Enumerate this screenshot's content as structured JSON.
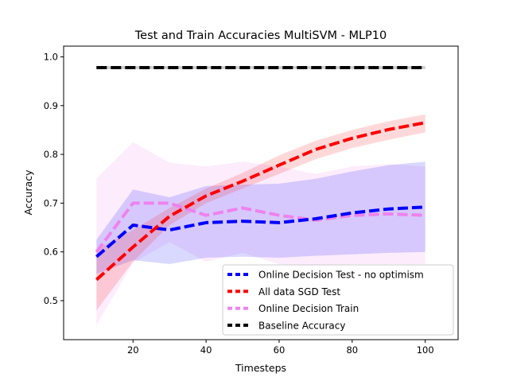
{
  "chart_data": {
    "type": "line",
    "title": "Test and Train Accuracies MultiSVM - MLP10",
    "xlabel": "Timesteps",
    "ylabel": "Accuracy",
    "xlim": [
      1,
      109
    ],
    "ylim": [
      0.42,
      1.022
    ],
    "xticks": [
      20,
      40,
      60,
      80,
      100
    ],
    "yticks": [
      0.5,
      0.6,
      0.7,
      0.8,
      0.9,
      1.0
    ],
    "ytick_labels": [
      "0.5",
      "0.6",
      "0.7",
      "0.8",
      "0.9",
      "1.0"
    ],
    "grid": false,
    "legend_position": "lower-right",
    "x": [
      10,
      20,
      30,
      40,
      50,
      60,
      70,
      80,
      90,
      100
    ],
    "series": [
      {
        "name": "Online Decision Test - no optimism",
        "color": "#0000ff",
        "values": [
          0.59,
          0.655,
          0.645,
          0.66,
          0.663,
          0.66,
          0.668,
          0.68,
          0.688,
          0.692
        ],
        "lower": [
          0.555,
          0.583,
          0.575,
          0.588,
          0.59,
          0.588,
          0.592,
          0.595,
          0.598,
          0.6
        ],
        "upper": [
          0.625,
          0.728,
          0.712,
          0.735,
          0.738,
          0.74,
          0.75,
          0.765,
          0.778,
          0.785
        ]
      },
      {
        "name": "All data SGD Test",
        "color": "#ff0000",
        "values": [
          0.543,
          0.61,
          0.673,
          0.715,
          0.745,
          0.778,
          0.81,
          0.833,
          0.851,
          0.865
        ],
        "lower": [
          0.48,
          0.58,
          0.655,
          0.7,
          0.73,
          0.76,
          0.79,
          0.813,
          0.83,
          0.845
        ],
        "upper": [
          0.605,
          0.645,
          0.69,
          0.73,
          0.762,
          0.798,
          0.828,
          0.85,
          0.868,
          0.882
        ]
      },
      {
        "name": "Online Decision Train",
        "color": "#ee82ee",
        "values": [
          0.6,
          0.7,
          0.7,
          0.675,
          0.69,
          0.675,
          0.665,
          0.675,
          0.678,
          0.675
        ],
        "lower": [
          0.45,
          0.578,
          0.62,
          0.58,
          0.598,
          0.575,
          0.57,
          0.575,
          0.575,
          0.575
        ],
        "upper": [
          0.75,
          0.825,
          0.783,
          0.775,
          0.785,
          0.775,
          0.76,
          0.775,
          0.78,
          0.775
        ]
      },
      {
        "name": "Baseline Accuracy",
        "color": "#000000",
        "values": [
          0.978,
          0.978,
          0.978,
          0.978,
          0.978,
          0.978,
          0.978,
          0.978,
          0.978,
          0.978
        ],
        "lower": [
          0.975,
          0.975,
          0.975,
          0.975,
          0.975,
          0.975,
          0.975,
          0.975,
          0.975,
          0.975
        ],
        "upper": [
          0.981,
          0.981,
          0.981,
          0.981,
          0.981,
          0.981,
          0.981,
          0.981,
          0.981,
          0.981
        ]
      }
    ]
  }
}
